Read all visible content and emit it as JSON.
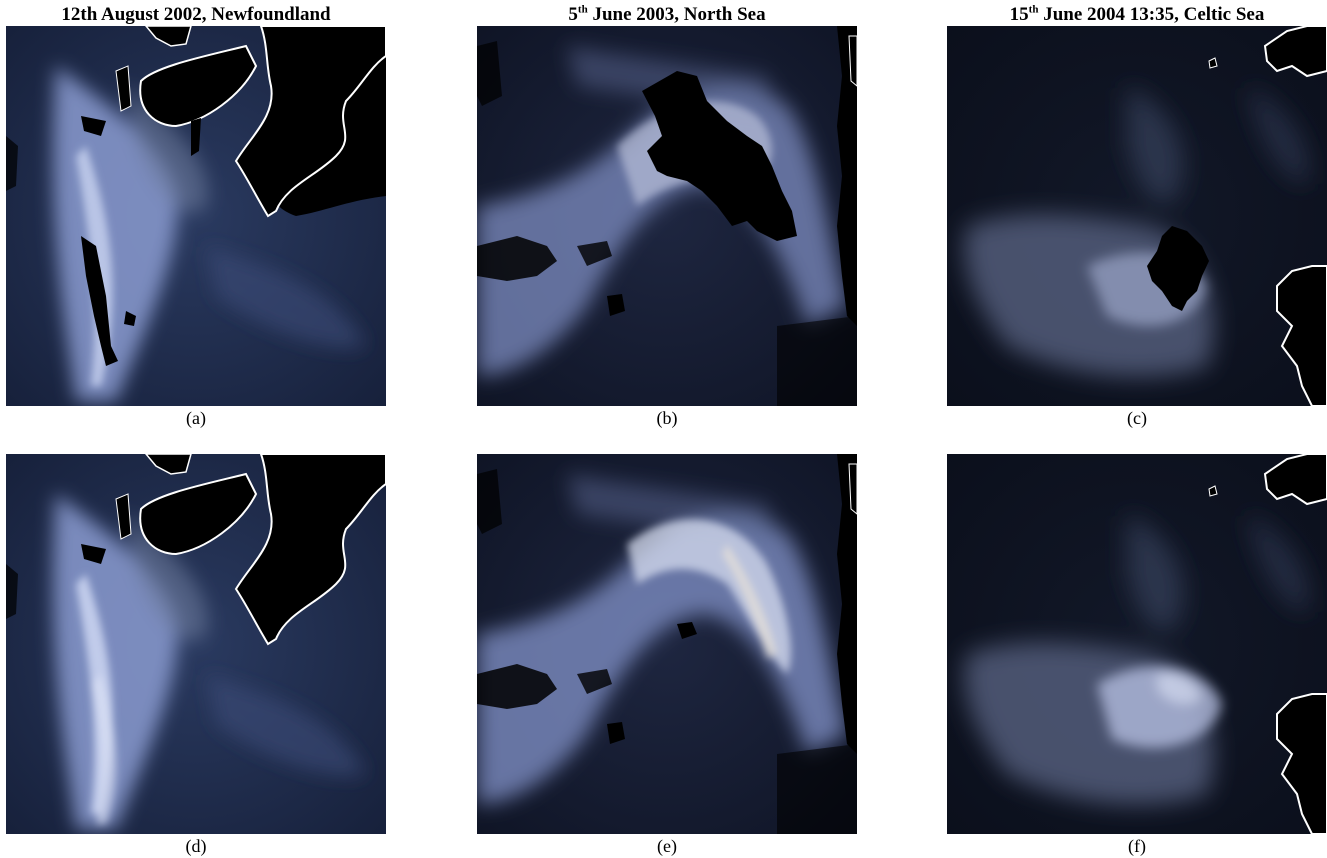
{
  "columns": [
    {
      "title_prefix": "12th August 2002, Newfoundland",
      "title_sup": "",
      "title_suffix": ""
    },
    {
      "title_prefix": "5",
      "title_sup": "th",
      "title_suffix": " June 2003, North Sea"
    },
    {
      "title_prefix": "15",
      "title_sup": "th",
      "title_suffix": " June 2004 13:35, Celtic Sea"
    }
  ],
  "panels": [
    {
      "label": "(a)"
    },
    {
      "label": "(b)"
    },
    {
      "label": "(c)"
    },
    {
      "label": "(d)"
    },
    {
      "label": "(e)"
    },
    {
      "label": "(f)"
    }
  ],
  "colors": {
    "ocean_dark": "#0b1224",
    "ocean_navy": "#1c2a4a",
    "bloom_light": "#b9c6e6",
    "bloom_mid": "#7d8fc0",
    "land_mask": "#000000",
    "coastline": "#ffffff"
  }
}
